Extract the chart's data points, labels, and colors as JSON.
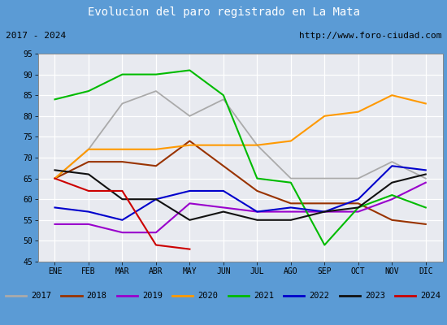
{
  "title": "Evolucion del paro registrado en La Mata",
  "subtitle_left": "2017 - 2024",
  "subtitle_right": "http://www.foro-ciudad.com",
  "title_bg": "#5b9bd5",
  "title_color": "white",
  "plot_bg": "#e8eaf0",
  "grid_color": "white",
  "months": [
    "ENE",
    "FEB",
    "MAR",
    "ABR",
    "MAY",
    "JUN",
    "JUL",
    "AGO",
    "SEP",
    "OCT",
    "NOV",
    "DIC"
  ],
  "ylim": [
    45,
    95
  ],
  "yticks": [
    45,
    50,
    55,
    60,
    65,
    70,
    75,
    80,
    85,
    90,
    95
  ],
  "series": {
    "2017": {
      "color": "#aaaaaa",
      "lw": 1.3,
      "values": [
        65,
        72,
        83,
        86,
        80,
        84,
        73,
        65,
        65,
        65,
        69,
        65
      ]
    },
    "2018": {
      "color": "#993300",
      "lw": 1.5,
      "values": [
        65,
        69,
        69,
        68,
        74,
        68,
        62,
        59,
        59,
        59,
        55,
        54
      ]
    },
    "2019": {
      "color": "#9900cc",
      "lw": 1.5,
      "values": [
        54,
        54,
        52,
        52,
        59,
        58,
        57,
        57,
        57,
        57,
        60,
        64
      ]
    },
    "2020": {
      "color": "#ff9900",
      "lw": 1.5,
      "values": [
        65,
        72,
        72,
        72,
        73,
        73,
        73,
        74,
        80,
        81,
        85,
        83
      ]
    },
    "2021": {
      "color": "#00bb00",
      "lw": 1.5,
      "values": [
        84,
        86,
        90,
        90,
        91,
        85,
        65,
        64,
        49,
        58,
        61,
        58
      ]
    },
    "2022": {
      "color": "#0000cc",
      "lw": 1.5,
      "values": [
        58,
        57,
        55,
        60,
        62,
        62,
        57,
        58,
        57,
        60,
        68,
        67
      ]
    },
    "2023": {
      "color": "#111111",
      "lw": 1.5,
      "values": [
        67,
        66,
        60,
        60,
        55,
        57,
        55,
        55,
        57,
        58,
        64,
        66
      ]
    },
    "2024": {
      "color": "#cc0000",
      "lw": 1.5,
      "values": [
        65,
        62,
        62,
        49,
        48,
        null,
        null,
        null,
        null,
        null,
        null,
        null
      ]
    }
  },
  "legend_order": [
    "2017",
    "2018",
    "2019",
    "2020",
    "2021",
    "2022",
    "2023",
    "2024"
  ]
}
